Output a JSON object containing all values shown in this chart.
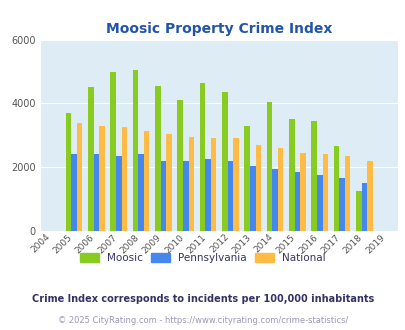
{
  "title": "Moosic Property Crime Index",
  "title_color": "#2255aa",
  "years": [
    "2004",
    "2005",
    "2006",
    "2007",
    "2008",
    "2009",
    "2010",
    "2011",
    "2012",
    "2013",
    "2014",
    "2015",
    "2016",
    "2017",
    "2018",
    "2019"
  ],
  "moosic": [
    0,
    3700,
    4500,
    5000,
    5050,
    4550,
    4100,
    4650,
    4350,
    3300,
    4050,
    3500,
    3450,
    2650,
    1250,
    0
  ],
  "pennsylvania": [
    0,
    2400,
    2400,
    2350,
    2400,
    2200,
    2200,
    2250,
    2200,
    2050,
    1950,
    1850,
    1750,
    1650,
    1500,
    0
  ],
  "national": [
    0,
    3400,
    3300,
    3250,
    3150,
    3050,
    2950,
    2900,
    2900,
    2700,
    2600,
    2450,
    2400,
    2350,
    2200,
    0
  ],
  "moosic_color": "#88cc22",
  "pennsylvania_color": "#4488ee",
  "national_color": "#ffbb44",
  "plot_bg": "#deedf5",
  "ylim": [
    0,
    6000
  ],
  "yticks": [
    0,
    2000,
    4000,
    6000
  ],
  "bar_width": 0.25,
  "footnote": "Crime Index corresponds to incidents per 100,000 inhabitants",
  "copyright": "© 2025 CityRating.com - https://www.cityrating.com/crime-statistics/",
  "footnote_color": "#333366",
  "copyright_color": "#9999bb"
}
